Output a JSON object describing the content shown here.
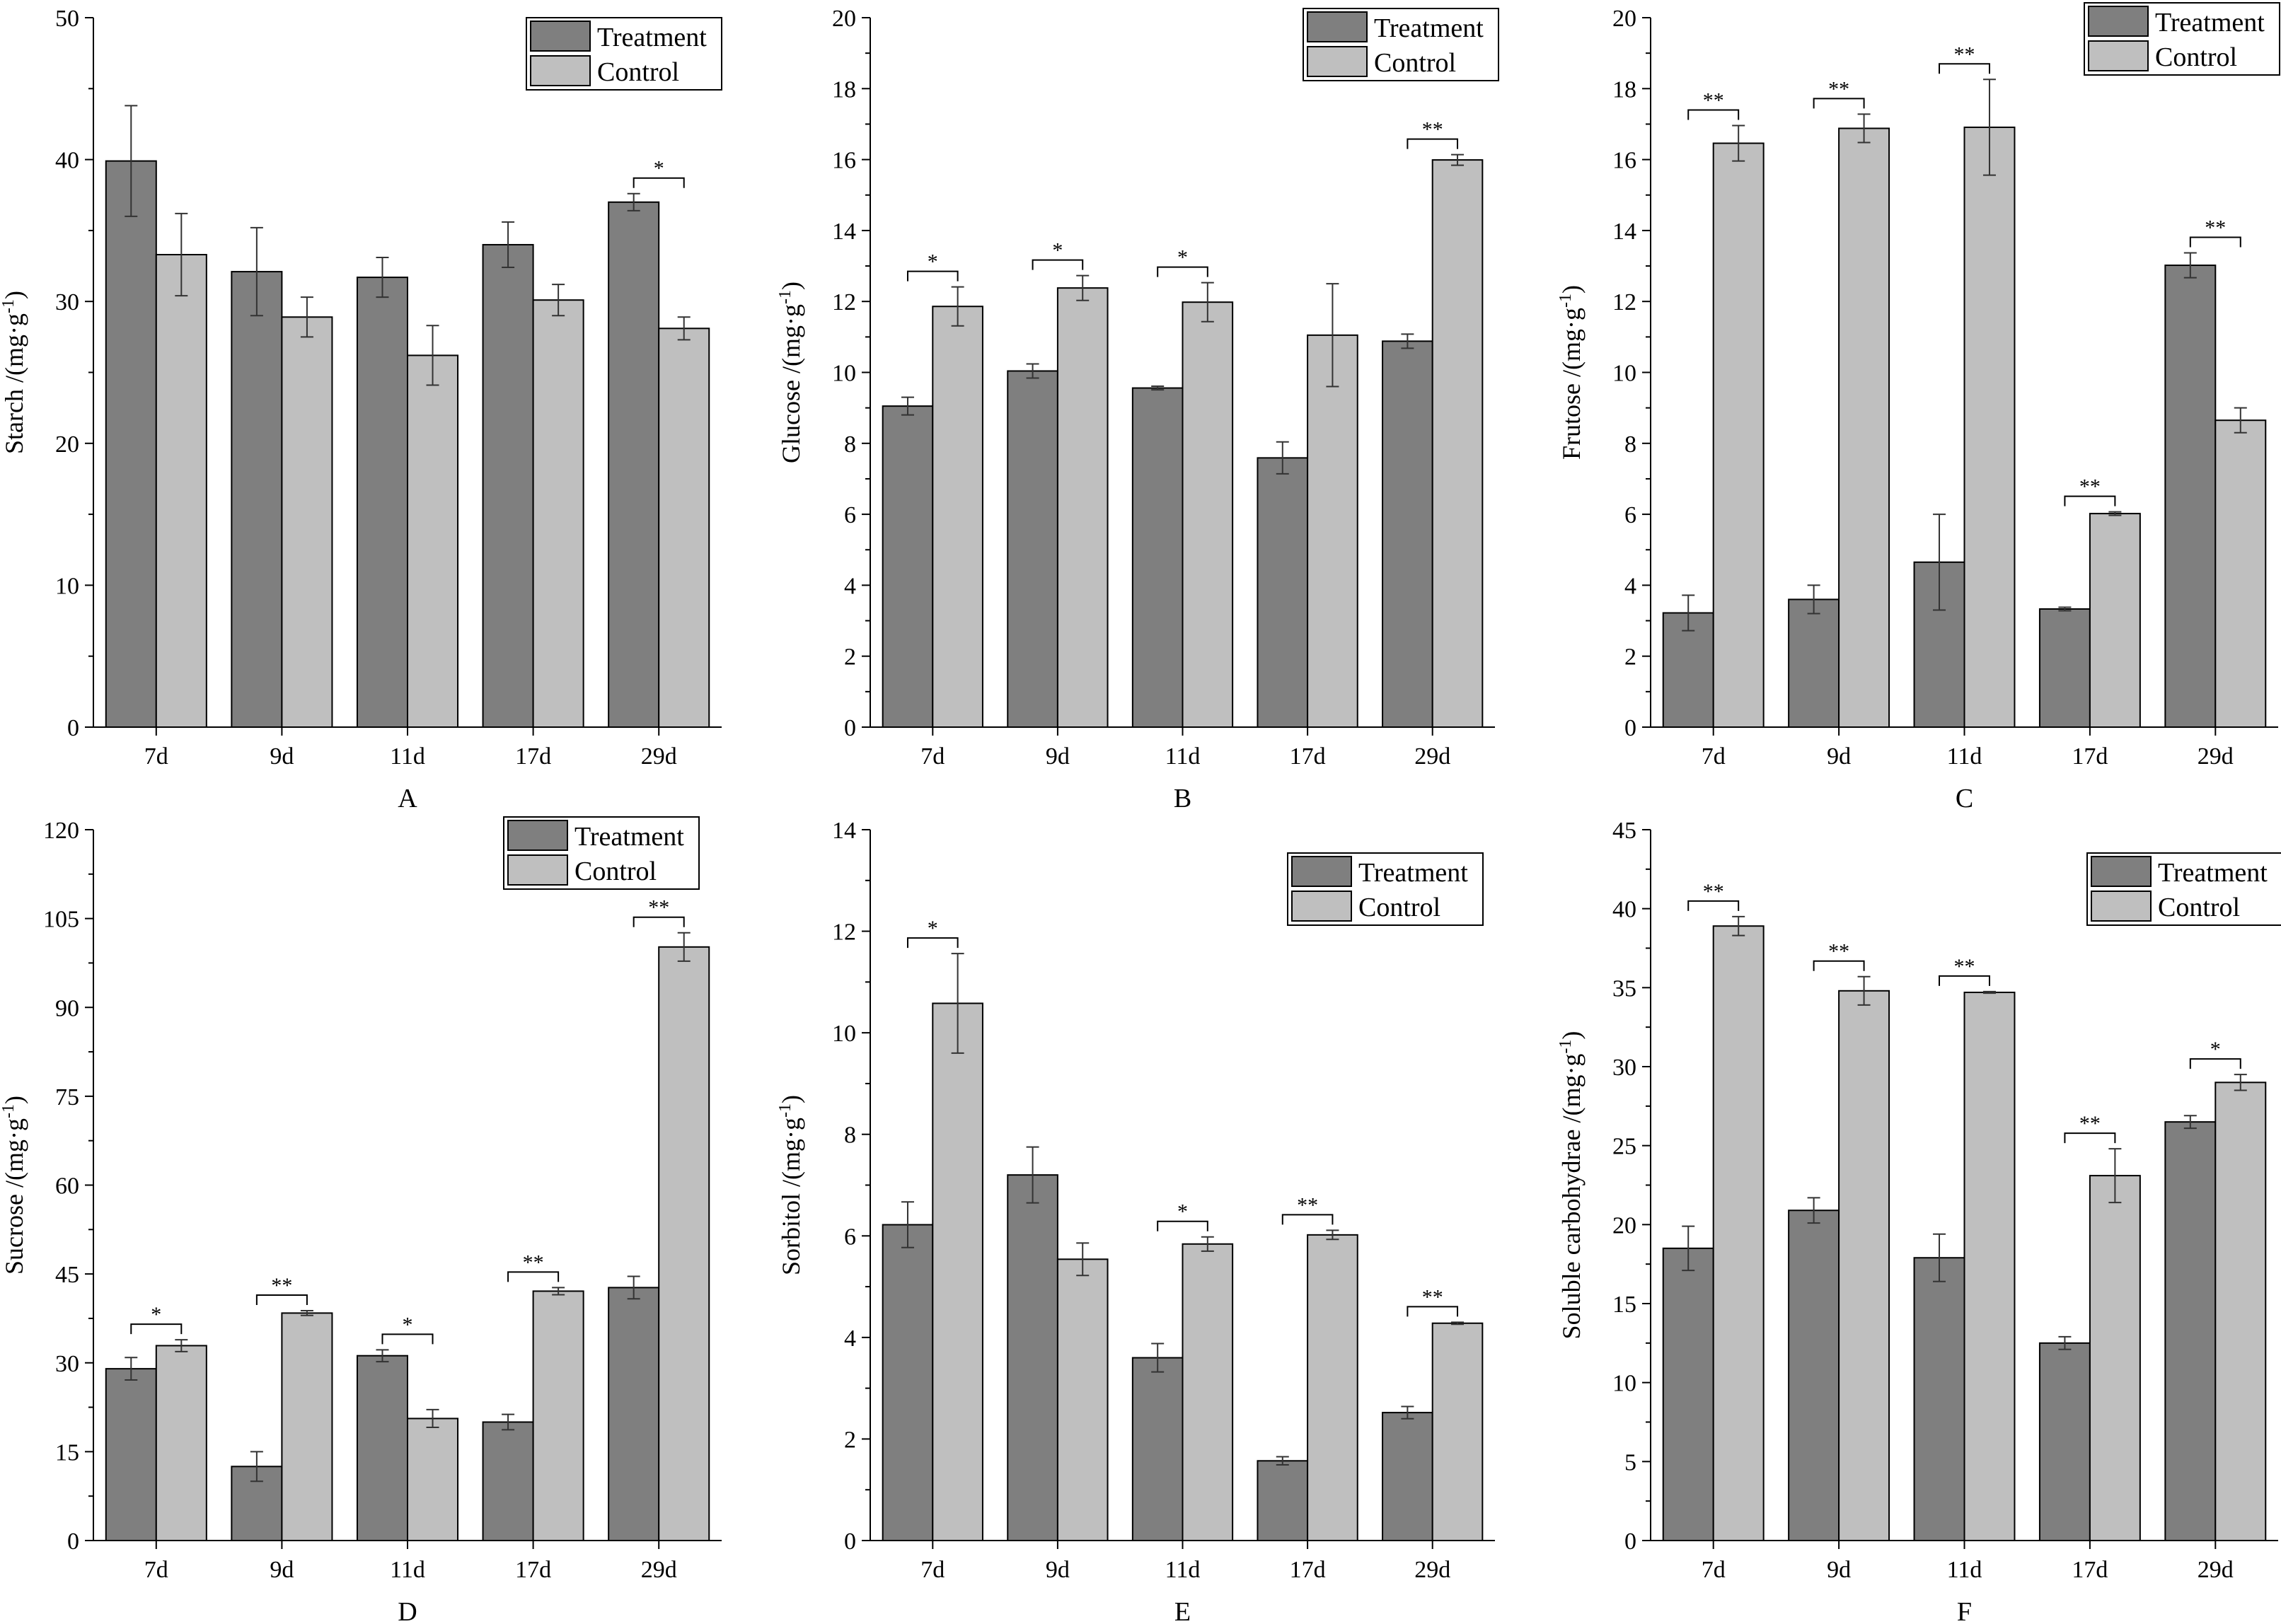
{
  "colors": {
    "treatment": "#7f7f7f",
    "control": "#bfbfbf",
    "axis": "#000000"
  },
  "legend": {
    "treatment_label": "Treatment",
    "control_label": "Control"
  },
  "chart_data": [
    {
      "type": "bar",
      "panel": "A",
      "categories": [
        "7d",
        "9d",
        "11d",
        "17d",
        "29d"
      ],
      "ylabel_main": "Starch /(mg·g",
      "ylabel_sup": "-1",
      "ylabel_end": ")",
      "ylim": [
        0,
        50
      ],
      "yticks": [
        0,
        10,
        20,
        30,
        40,
        50
      ],
      "legend_position": "top-right",
      "series": [
        {
          "name": "Treatment",
          "values": [
            39.9,
            32.1,
            31.7,
            34.0,
            37.0
          ],
          "errors": [
            3.9,
            3.1,
            1.4,
            1.6,
            0.6
          ]
        },
        {
          "name": "Control",
          "values": [
            33.3,
            28.9,
            26.2,
            30.1,
            28.1
          ],
          "errors": [
            2.9,
            1.4,
            2.1,
            1.1,
            0.8
          ]
        }
      ],
      "significance": [
        "",
        "",
        "",
        "",
        "*"
      ]
    },
    {
      "type": "bar",
      "panel": "B",
      "categories": [
        "7d",
        "9d",
        "11d",
        "17d",
        "29d"
      ],
      "ylabel_main": "Glucose /(mg·g",
      "ylabel_sup": "-1",
      "ylabel_end": ")",
      "ylim": [
        0,
        20
      ],
      "yticks": [
        0,
        2,
        4,
        6,
        8,
        10,
        12,
        14,
        16,
        18,
        20
      ],
      "legend_position": "top-right",
      "series": [
        {
          "name": "Treatment",
          "values": [
            9.05,
            10.04,
            9.56,
            7.59,
            10.88
          ],
          "errors": [
            0.25,
            0.2,
            0.05,
            0.45,
            0.2
          ]
        },
        {
          "name": "Control",
          "values": [
            11.86,
            12.38,
            11.98,
            11.05,
            15.99
          ],
          "errors": [
            0.55,
            0.35,
            0.55,
            1.45,
            0.15
          ]
        }
      ],
      "significance": [
        "*",
        "*",
        "*",
        "",
        "**"
      ]
    },
    {
      "type": "bar",
      "panel": "C",
      "categories": [
        "7d",
        "9d",
        "11d",
        "17d",
        "29d"
      ],
      "ylabel_main": "Frutose /(mg·g",
      "ylabel_sup": "-1",
      "ylabel_end": ")",
      "ylim": [
        0,
        20
      ],
      "yticks": [
        0,
        2,
        4,
        6,
        8,
        10,
        12,
        14,
        16,
        18,
        20
      ],
      "legend_position": "top-right",
      "series": [
        {
          "name": "Treatment",
          "values": [
            3.22,
            3.6,
            4.65,
            3.33,
            13.02
          ],
          "errors": [
            0.5,
            0.4,
            1.35,
            0.05,
            0.35
          ]
        },
        {
          "name": "Control",
          "values": [
            16.46,
            16.88,
            16.91,
            6.02,
            8.65
          ],
          "errors": [
            0.5,
            0.4,
            1.35,
            0.05,
            0.35
          ]
        }
      ],
      "significance": [
        "**",
        "**",
        "**",
        "**",
        "**"
      ]
    },
    {
      "type": "bar",
      "panel": "D",
      "categories": [
        "7d",
        "9d",
        "11d",
        "17d",
        "29d"
      ],
      "ylabel_main": "Sucrose /(mg·g",
      "ylabel_sup": "-1",
      "ylabel_end": ")",
      "ylim": [
        0,
        120
      ],
      "yticks": [
        0,
        15,
        30,
        45,
        60,
        75,
        90,
        105,
        120
      ],
      "legend_position": "top-right",
      "series": [
        {
          "name": "Treatment",
          "values": [
            29.0,
            12.5,
            31.2,
            20.0,
            42.7
          ],
          "errors": [
            1.9,
            2.5,
            1.0,
            1.3,
            1.9
          ]
        },
        {
          "name": "Control",
          "values": [
            32.9,
            38.4,
            20.6,
            42.1,
            100.2
          ],
          "errors": [
            1.0,
            0.4,
            1.5,
            0.6,
            2.4
          ]
        }
      ],
      "significance": [
        "*",
        "**",
        "*",
        "**",
        "**"
      ]
    },
    {
      "type": "bar",
      "panel": "E",
      "categories": [
        "7d",
        "9d",
        "11d",
        "17d",
        "29d"
      ],
      "ylabel_main": "Sorbitol /(mg·g",
      "ylabel_sup": "-1",
      "ylabel_end": ")",
      "ylim": [
        0,
        14
      ],
      "yticks": [
        0,
        2,
        4,
        6,
        8,
        10,
        12,
        14
      ],
      "legend_position": "top-right",
      "series": [
        {
          "name": "Treatment",
          "values": [
            6.22,
            7.2,
            3.6,
            1.57,
            2.52
          ],
          "errors": [
            0.45,
            0.55,
            0.28,
            0.08,
            0.12
          ]
        },
        {
          "name": "Control",
          "values": [
            10.58,
            5.54,
            5.84,
            6.02,
            4.28
          ],
          "errors": [
            0.98,
            0.32,
            0.14,
            0.09,
            0.02
          ]
        }
      ],
      "significance": [
        "*",
        "",
        "*",
        "**",
        "**"
      ]
    },
    {
      "type": "bar",
      "panel": "F",
      "categories": [
        "7d",
        "9d",
        "11d",
        "17d",
        "29d"
      ],
      "ylabel_main": "Soluble carbohydrae /(mg·g",
      "ylabel_sup": "-1",
      "ylabel_end": ")",
      "ylim": [
        0,
        45
      ],
      "yticks": [
        0,
        5,
        10,
        15,
        20,
        25,
        30,
        35,
        40,
        45
      ],
      "legend_position": "top-right",
      "series": [
        {
          "name": "Treatment",
          "values": [
            18.5,
            20.9,
            17.9,
            12.5,
            26.5
          ],
          "errors": [
            1.4,
            0.8,
            1.5,
            0.4,
            0.4
          ]
        },
        {
          "name": "Control",
          "values": [
            38.9,
            34.8,
            34.7,
            23.1,
            29.0
          ],
          "errors": [
            0.6,
            0.9,
            0.05,
            1.7,
            0.5
          ]
        }
      ],
      "significance": [
        "**",
        "**",
        "**",
        "**",
        "*"
      ]
    }
  ]
}
